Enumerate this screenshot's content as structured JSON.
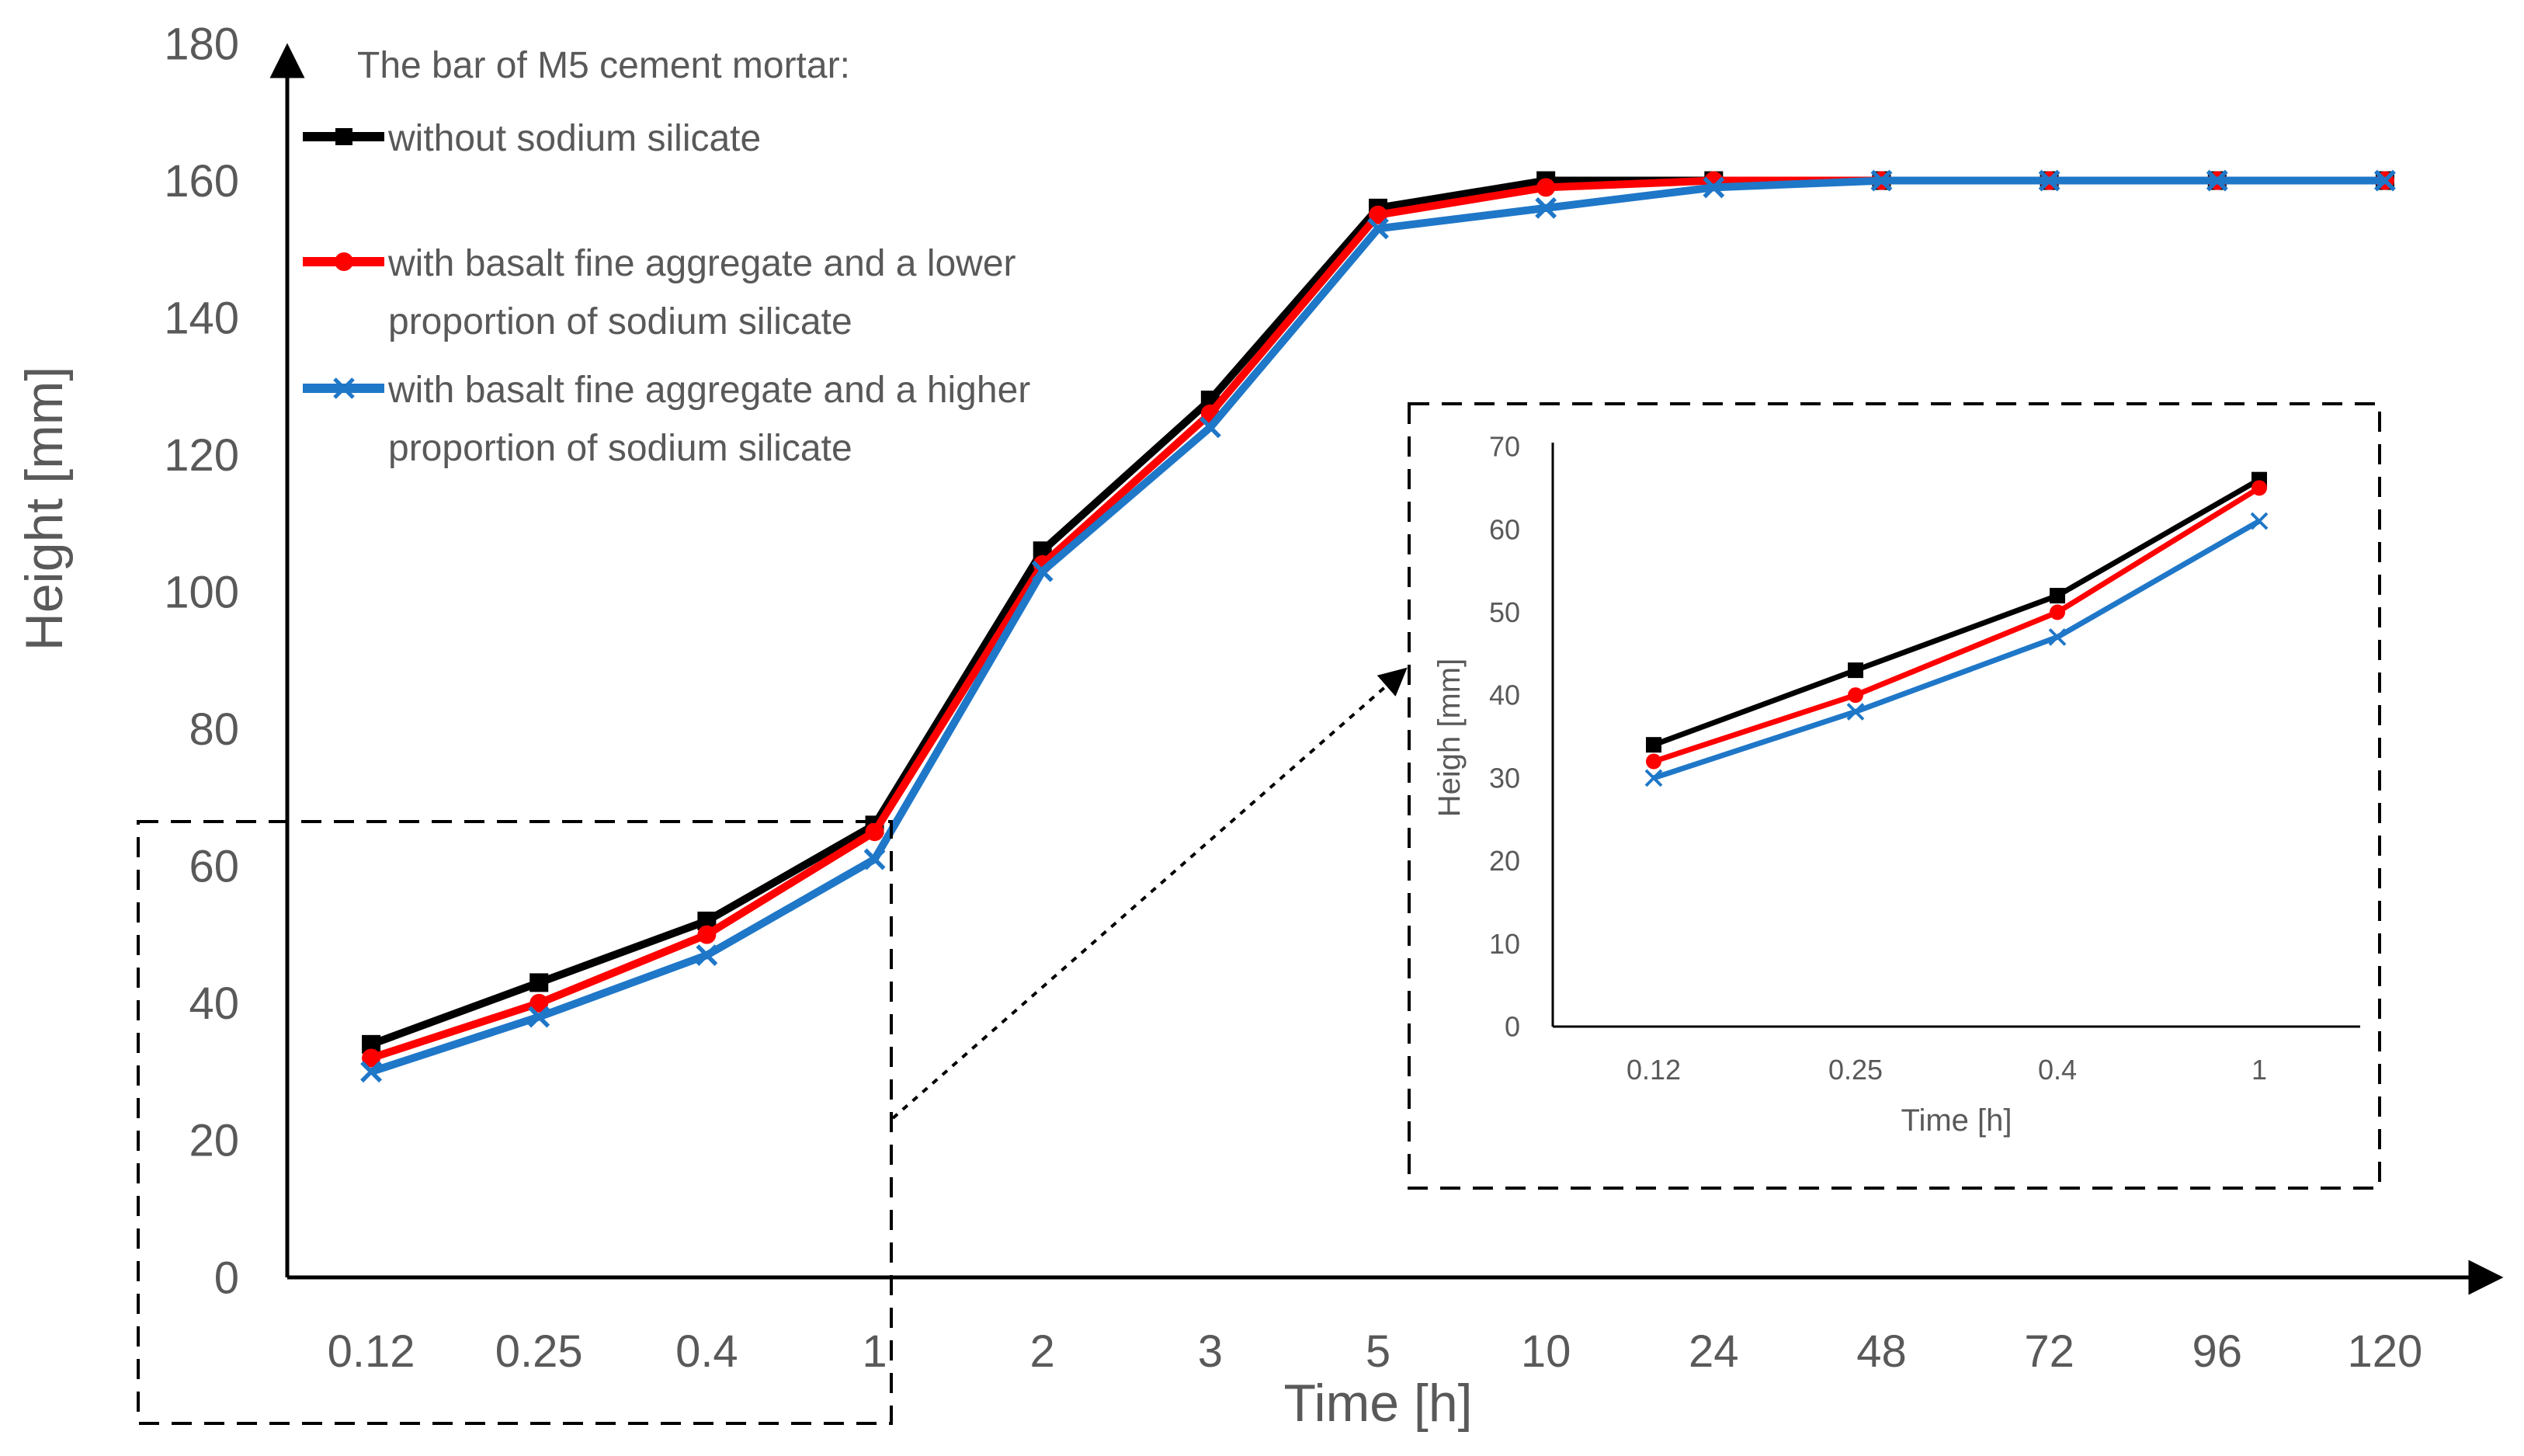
{
  "chart_data": [
    {
      "type": "line",
      "title": "",
      "xlabel": "Time [h]",
      "ylabel": "Height [mm]",
      "categories": [
        "0.12",
        "0.25",
        "0.4",
        "1",
        "2",
        "3",
        "5",
        "10",
        "24",
        "48",
        "72",
        "96",
        "120"
      ],
      "yticks": [
        "0",
        "20",
        "40",
        "60",
        "80",
        "100",
        "120",
        "140",
        "160",
        "180"
      ],
      "ylim": [
        0,
        180
      ],
      "grid": false,
      "legend": {
        "position": "top-left",
        "title": "The bar of M5 cement mortar:",
        "entries": [
          [
            "without sodium silicate"
          ],
          [
            "with basalt fine aggregate and a lower",
            "proportion of sodium silicate"
          ],
          [
            "with basalt fine aggregate and a higher",
            "proportion of sodium silicate"
          ]
        ]
      },
      "series": [
        {
          "name": "without sodium silicate",
          "color": "#000000",
          "marker": "square",
          "values": [
            34,
            43,
            52,
            66,
            106,
            128,
            156,
            160,
            160,
            160,
            160,
            160,
            160
          ]
        },
        {
          "name": "with basalt fine aggregate and a lower proportion of sodium silicate",
          "color": "#ff0000",
          "marker": "circle",
          "values": [
            32,
            40,
            50,
            65,
            104,
            126,
            155,
            159,
            160,
            160,
            160,
            160,
            160
          ]
        },
        {
          "name": "with basalt fine aggregate and a higher proportion of sodium silicate",
          "color": "#1f77c8",
          "marker": "x",
          "values": [
            30,
            38,
            47,
            61,
            103,
            124,
            153,
            156,
            159,
            160,
            160,
            160,
            160
          ]
        }
      ]
    },
    {
      "type": "line",
      "title": "",
      "xlabel": "Time [h]",
      "ylabel": "Heigh [mm]",
      "categories": [
        "0.12",
        "0.25",
        "0.4",
        "1"
      ],
      "yticks": [
        "0",
        "10",
        "20",
        "30",
        "40",
        "50",
        "60",
        "70"
      ],
      "ylim": [
        0,
        70
      ],
      "grid": false,
      "series": [
        {
          "name": "without sodium silicate",
          "color": "#000000",
          "marker": "square",
          "values": [
            34,
            43,
            52,
            66
          ]
        },
        {
          "name": "with basalt fine aggregate and a lower proportion of sodium silicate",
          "color": "#ff0000",
          "marker": "circle",
          "values": [
            32,
            40,
            50,
            65
          ]
        },
        {
          "name": "with basalt fine aggregate and a higher proportion of sodium silicate",
          "color": "#1f77c8",
          "marker": "x",
          "values": [
            30,
            38,
            47,
            61
          ]
        }
      ]
    }
  ]
}
